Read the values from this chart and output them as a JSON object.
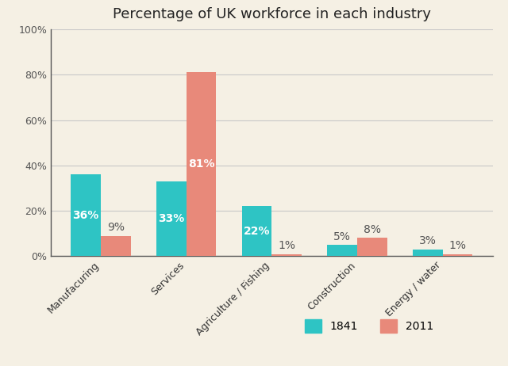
{
  "title": "Percentage of UK workforce in each industry",
  "categories": [
    "Manufacuring",
    "Services",
    "Agriculture / Fishing",
    "Construction",
    "Energy / water"
  ],
  "values_1841": [
    36,
    33,
    22,
    5,
    3
  ],
  "values_2011": [
    9,
    81,
    1,
    8,
    1
  ],
  "color_1841": "#2EC4C4",
  "color_2011": "#E8897A",
  "legend_labels": [
    "1841",
    "2011"
  ],
  "ylim": [
    0,
    100
  ],
  "yticks": [
    0,
    20,
    40,
    60,
    80,
    100
  ],
  "ytick_labels": [
    "0%",
    "20%",
    "40%",
    "60%",
    "80%",
    "100%"
  ],
  "background_color": "#F5F0E4",
  "bar_width": 0.35,
  "label_fontsize": 10,
  "title_fontsize": 13,
  "grid_color": "#C8C8C8",
  "spine_color": "#555555"
}
